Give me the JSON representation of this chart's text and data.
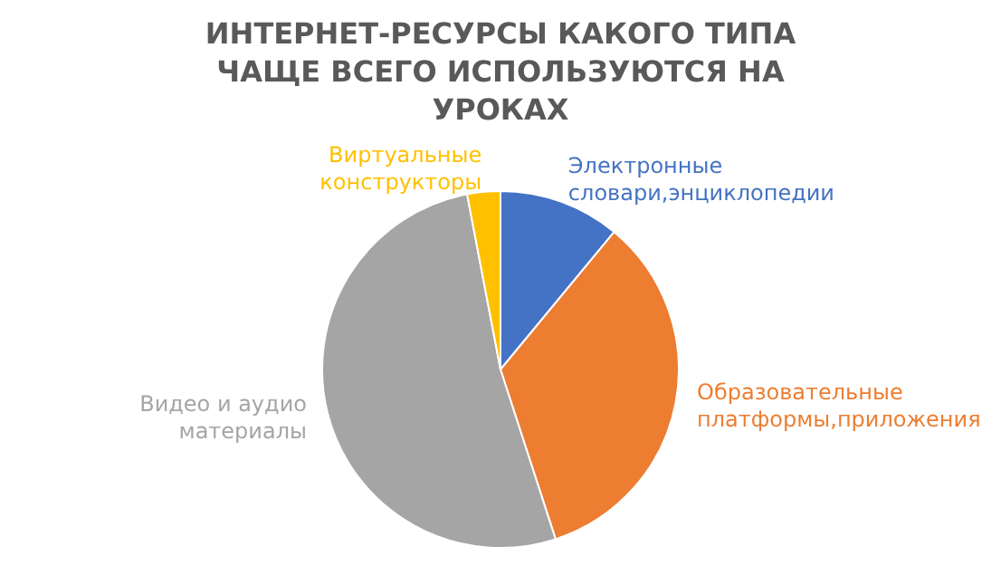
{
  "chart_data": {
    "type": "pie",
    "title": "ИНТЕРНЕТ-РЕСУРСЫ КАКОГО ТИПА ЧАЩЕ ВСЕГО ИСПОЛЬЗУЮТСЯ НА УРОКАХ",
    "categories": [
      "Электронные словари,энциклопедии",
      "Образовательные платформы,приложения",
      "Видео и аудио материалы",
      "Виртуальные конструкторы"
    ],
    "values": [
      11,
      34,
      52,
      3
    ],
    "colors": [
      "#4472c4",
      "#ed7d31",
      "#a5a5a5",
      "#ffc000"
    ],
    "legend": false
  }
}
